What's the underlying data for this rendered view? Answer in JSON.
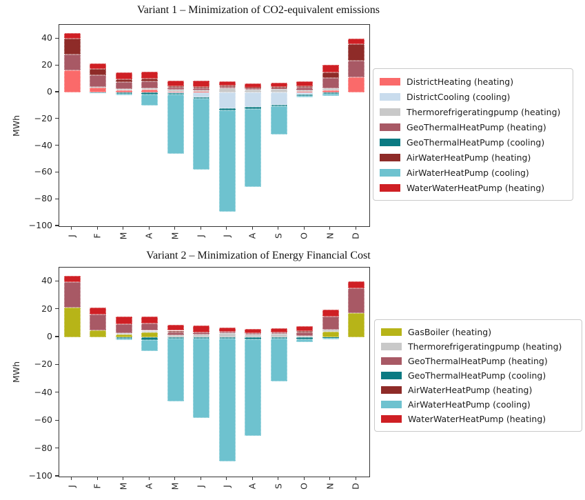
{
  "figure": {
    "background": "#ffffff"
  },
  "chart_data": [
    {
      "type": "bar",
      "stacked": true,
      "title": "Variant 1 – Minimization of CO2-equivalent emissions",
      "ylabel": "MWh",
      "categories": [
        "J",
        "F",
        "M",
        "A",
        "M",
        "J",
        "J",
        "A",
        "S",
        "O",
        "N",
        "D"
      ],
      "ylim": [
        -100,
        50.5
      ],
      "yticks": [
        40,
        20,
        0,
        -20,
        -40,
        -60,
        -80,
        -100
      ],
      "grid": false,
      "legend_position": "right",
      "series": [
        {
          "name": "DistrictHeating (heating)",
          "color": "#fa6a6a",
          "values": [
            16.5,
            3.5,
            1.5,
            2.0,
            0.3,
            0.3,
            0.0,
            0.0,
            0.0,
            0.3,
            1.7,
            11.5
          ]
        },
        {
          "name": "DistrictCooling (cooling)",
          "color": "#c9dced",
          "values": [
            0,
            0,
            0,
            0,
            -0.5,
            -3.5,
            -12.0,
            -11.0,
            -9.5,
            -1.5,
            0,
            0
          ]
        },
        {
          "name": "Thermorefrigeratingpump (heating)",
          "color": "#c9c9c9",
          "values": [
            0,
            0.5,
            1.0,
            1.2,
            1.5,
            1.3,
            3.0,
            2.2,
            2.4,
            1.2,
            1.5,
            0
          ]
        },
        {
          "name": "GeoThermalHeatPump (heating)",
          "color": "#a85965",
          "values": [
            12.0,
            9.0,
            5.0,
            4.8,
            1.7,
            1.5,
            1.2,
            0.8,
            0.9,
            2.0,
            7.6,
            12.0
          ]
        },
        {
          "name": "GeoThermalHeatPump (cooling)",
          "color": "#0b7a82",
          "values": [
            0,
            0,
            -0.8,
            -1.8,
            -1.0,
            -1.2,
            -1.2,
            -1.3,
            -1.0,
            -1.0,
            -1.2,
            0
          ]
        },
        {
          "name": "AirWaterHeatPump (heating)",
          "color": "#8e2b28",
          "values": [
            11.5,
            4.5,
            2.5,
            2.5,
            1.2,
            1.0,
            0.8,
            0.7,
            0.9,
            1.0,
            4.3,
            12.5
          ]
        },
        {
          "name": "AirWaterHeatPump (cooling)",
          "color": "#6ec2cf",
          "values": [
            0,
            -0.6,
            -1.2,
            -8.2,
            -44.5,
            -53.0,
            -75.8,
            -58.5,
            -21.0,
            -1.0,
            -1.5,
            0
          ]
        },
        {
          "name": "WaterWaterHeatPump (heating)",
          "color": "#cf1f24",
          "values": [
            4.5,
            4.0,
            5.0,
            4.8,
            4.3,
            4.4,
            3.0,
            2.8,
            3.1,
            3.5,
            5.3,
            4.0
          ]
        }
      ]
    },
    {
      "type": "bar",
      "stacked": true,
      "title": "Variant  2 – Minimization of Energy Financial Cost",
      "ylabel": "MWh",
      "categories": [
        "J",
        "F",
        "M",
        "A",
        "M",
        "J",
        "J",
        "A",
        "S",
        "O",
        "N",
        "D"
      ],
      "ylim": [
        -100,
        50
      ],
      "yticks": [
        40,
        20,
        0,
        -20,
        -40,
        -60,
        -80,
        -100
      ],
      "grid": false,
      "legend_position": "right",
      "series": [
        {
          "name": "GasBoiler (heating)",
          "color": "#b7b418",
          "values": [
            21.5,
            5.0,
            2.0,
            3.5,
            0,
            0,
            0,
            0,
            0,
            0,
            4.0,
            17.5
          ]
        },
        {
          "name": "Thermorefrigeratingpump (heating)",
          "color": "#c9c9c9",
          "values": [
            0,
            0,
            1.0,
            1.2,
            1.5,
            1.8,
            2.8,
            2.2,
            2.4,
            1.2,
            1.5,
            0
          ]
        },
        {
          "name": "GeoThermalHeatPump (heating)",
          "color": "#a85965",
          "values": [
            18.0,
            11.5,
            6.5,
            5.0,
            2.0,
            1.8,
            1.2,
            0.8,
            0.9,
            2.3,
            9.2,
            17.5
          ]
        },
        {
          "name": "GeoThermalHeatPump (cooling)",
          "color": "#0b7a82",
          "values": [
            0,
            0,
            -0.8,
            -2.0,
            -1.0,
            -1.2,
            -1.2,
            -1.3,
            -1.0,
            -1.5,
            -0.7,
            0
          ]
        },
        {
          "name": "AirWaterHeatPump (heating)",
          "color": "#8e2b28",
          "values": [
            0,
            0,
            0,
            0,
            1.2,
            0,
            0,
            0,
            0,
            1.0,
            0,
            0
          ]
        },
        {
          "name": "AirWaterHeatPump (cooling)",
          "color": "#6ec2cf",
          "values": [
            0,
            0,
            -1.2,
            -8.0,
            -45.0,
            -56.5,
            -87.8,
            -69.5,
            -30.5,
            -2.0,
            -0.8,
            0
          ]
        },
        {
          "name": "WaterWaterHeatPump (heating)",
          "color": "#cf1f24",
          "values": [
            4.5,
            5.0,
            5.5,
            5.0,
            4.3,
            4.6,
            3.0,
            2.8,
            3.1,
            3.5,
            5.3,
            5.3
          ]
        }
      ]
    }
  ]
}
